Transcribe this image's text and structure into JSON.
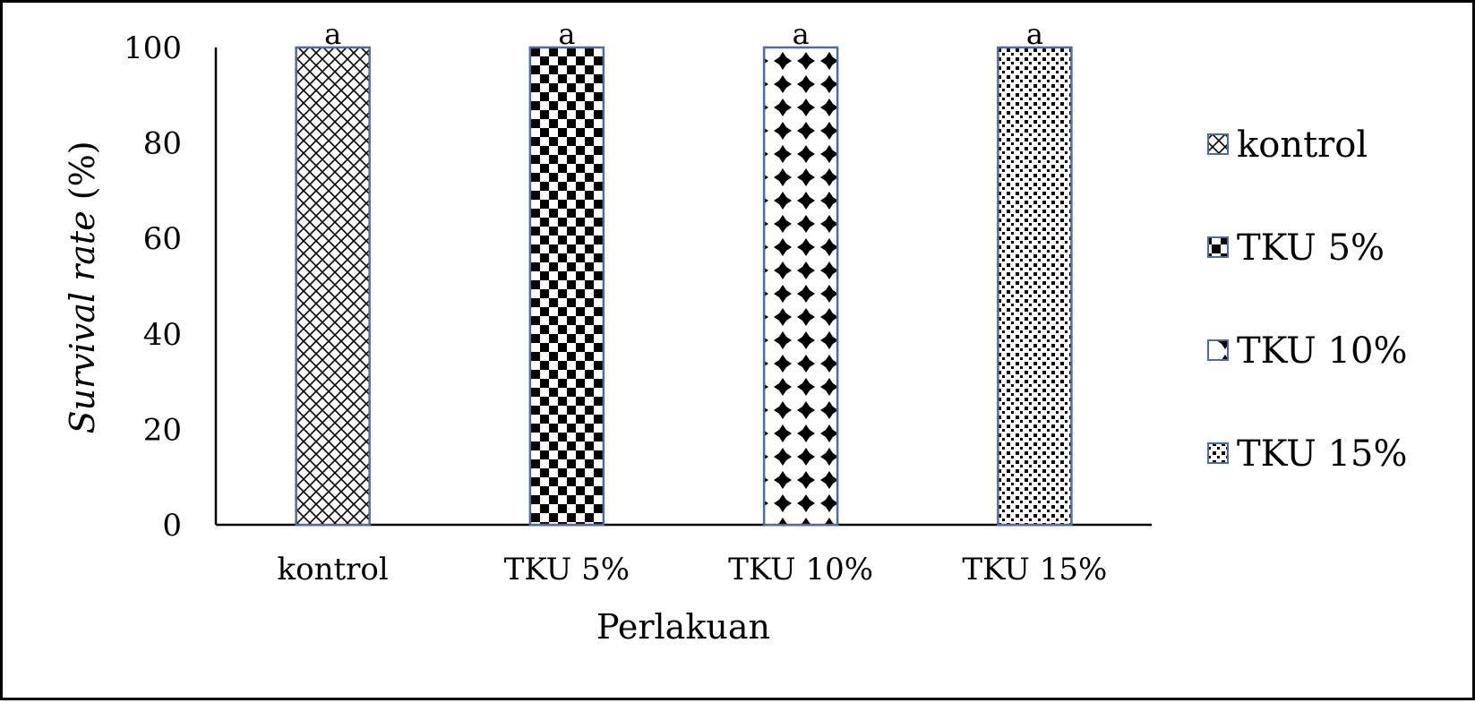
{
  "chart_data": {
    "type": "bar",
    "categories": [
      "kontrol",
      "TKU 5%",
      "TKU 10%",
      "TKU 15%"
    ],
    "series": [
      {
        "values": [
          100,
          100,
          100,
          100
        ],
        "data_labels": [
          "a",
          "a",
          "a",
          "a"
        ]
      }
    ],
    "ylabel_italic": "Survival rate",
    "ylabel_unit": " (%)",
    "xlabel": "Perlakuan",
    "ylim": [
      0,
      100
    ],
    "yticks": [
      0,
      20,
      40,
      60,
      80,
      100
    ],
    "grid": false,
    "legend": {
      "placement": "right",
      "entries": [
        "kontrol",
        "TKU 5%",
        "TKU 10%",
        "TKU 15%"
      ]
    },
    "colors": {
      "bar_border": "#4f6d9a",
      "pattern": "#000000",
      "axis": "#000000"
    }
  }
}
